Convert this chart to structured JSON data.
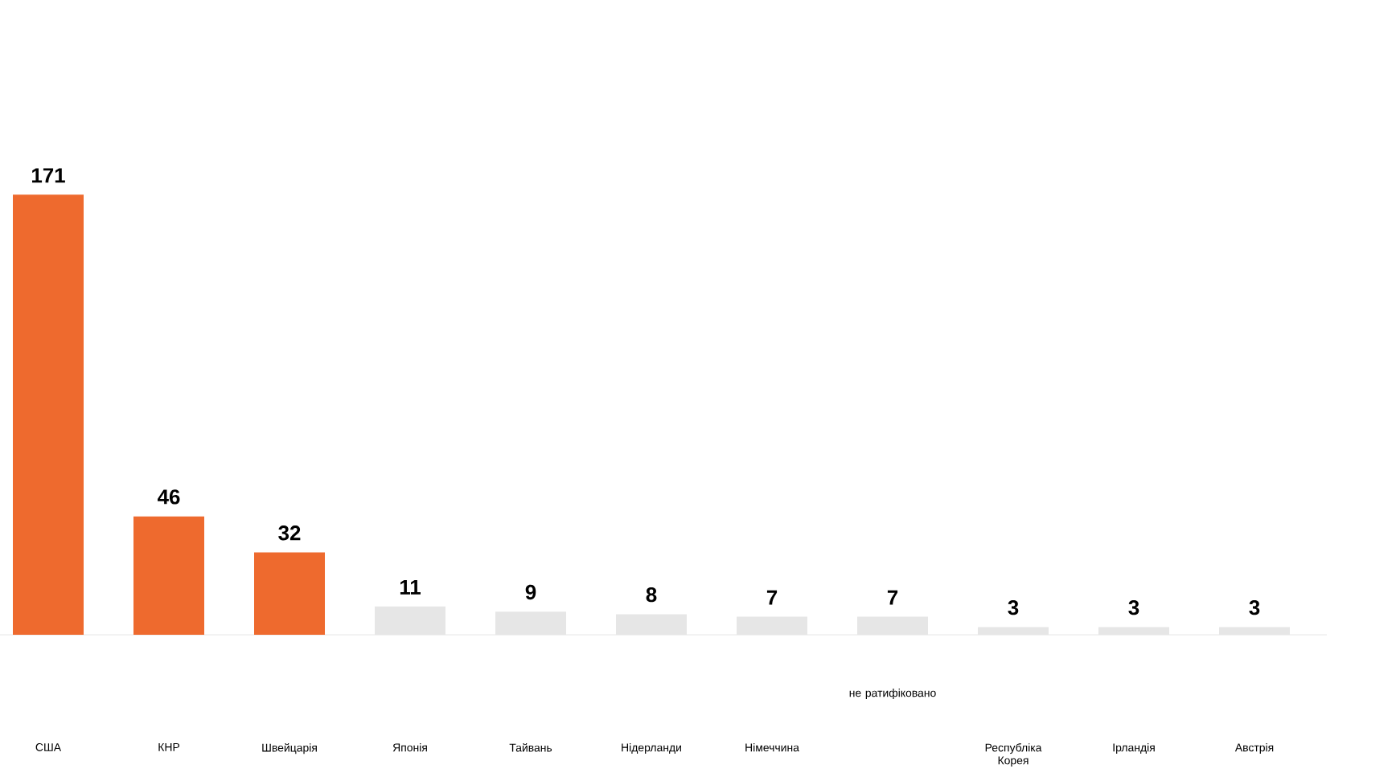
{
  "chart_data": {
    "type": "bar",
    "categories": [
      "США",
      "КНР",
      "Швейцарія",
      "Японія",
      "Тайвань",
      "Нідерланди",
      "Німеччина",
      null,
      "Республіка Корея",
      "Ірландія",
      "Австрія"
    ],
    "values": [
      171,
      46,
      32,
      11,
      9,
      8,
      7,
      7,
      3,
      3,
      3
    ],
    "colors": [
      "#ee6a2e",
      "#ee6a2e",
      "#ee6a2e",
      "#e6e6e6",
      "#e6e6e6",
      "#e6e6e6",
      "#e6e6e6",
      "#e6e6e6",
      "#e6e6e6",
      "#e6e6e6",
      "#e6e6e6"
    ],
    "data_labels": true,
    "annotations": [
      "не ратифіковано"
    ]
  }
}
